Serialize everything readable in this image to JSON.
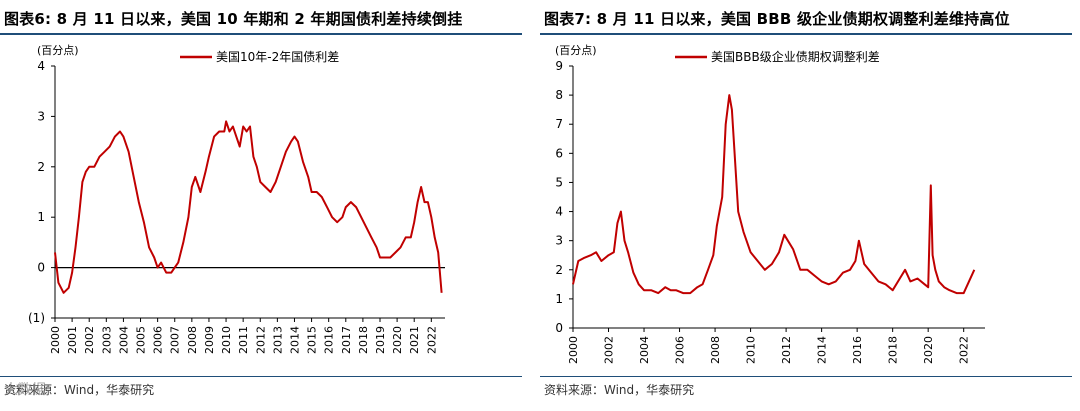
{
  "panels": [
    {
      "title": "图表6:  8 月 11 日以来，美国 10 年期和 2 年期国债利差持续倒挂",
      "source": "资料来源：Wind，华泰研究",
      "watermark": "大数据",
      "chart_data": {
        "type": "line",
        "unit_label": "(百分点)",
        "series": [
          {
            "name": "美国10年-2年国债利差",
            "color": "#c00000",
            "x": [
              2000.0,
              2000.2,
              2000.5,
              2000.8,
              2001.0,
              2001.2,
              2001.4,
              2001.6,
              2001.8,
              2002.0,
              2002.3,
              2002.6,
              2002.9,
              2003.2,
              2003.5,
              2003.8,
              2004.0,
              2004.3,
              2004.6,
              2004.9,
              2005.2,
              2005.5,
              2005.8,
              2006.0,
              2006.2,
              2006.5,
              2006.8,
              2007.0,
              2007.2,
              2007.5,
              2007.8,
              2008.0,
              2008.2,
              2008.5,
              2008.8,
              2009.0,
              2009.3,
              2009.6,
              2009.9,
              2010.0,
              2010.2,
              2010.4,
              2010.6,
              2010.8,
              2011.0,
              2011.2,
              2011.4,
              2011.6,
              2011.8,
              2012.0,
              2012.3,
              2012.6,
              2012.9,
              2013.2,
              2013.5,
              2013.8,
              2014.0,
              2014.2,
              2014.5,
              2014.8,
              2015.0,
              2015.3,
              2015.6,
              2015.9,
              2016.2,
              2016.5,
              2016.8,
              2017.0,
              2017.3,
              2017.6,
              2017.9,
              2018.2,
              2018.5,
              2018.8,
              2019.0,
              2019.3,
              2019.6,
              2019.9,
              2020.2,
              2020.5,
              2020.8,
              2021.0,
              2021.2,
              2021.4,
              2021.6,
              2021.8,
              2022.0,
              2022.2,
              2022.4,
              2022.6
            ],
            "y": [
              0.3,
              -0.3,
              -0.5,
              -0.4,
              -0.1,
              0.4,
              1.0,
              1.7,
              1.9,
              2.0,
              2.0,
              2.2,
              2.3,
              2.4,
              2.6,
              2.7,
              2.6,
              2.3,
              1.8,
              1.3,
              0.9,
              0.4,
              0.2,
              0.0,
              0.1,
              -0.1,
              -0.1,
              0.0,
              0.1,
              0.5,
              1.0,
              1.6,
              1.8,
              1.5,
              1.9,
              2.2,
              2.6,
              2.7,
              2.7,
              2.9,
              2.7,
              2.8,
              2.6,
              2.4,
              2.8,
              2.7,
              2.8,
              2.2,
              2.0,
              1.7,
              1.6,
              1.5,
              1.7,
              2.0,
              2.3,
              2.5,
              2.6,
              2.5,
              2.1,
              1.8,
              1.5,
              1.5,
              1.4,
              1.2,
              1.0,
              0.9,
              1.0,
              1.2,
              1.3,
              1.2,
              1.0,
              0.8,
              0.6,
              0.4,
              0.2,
              0.2,
              0.2,
              0.3,
              0.4,
              0.6,
              0.6,
              0.9,
              1.3,
              1.6,
              1.3,
              1.3,
              1.0,
              0.6,
              0.3,
              -0.5
            ]
          }
        ],
        "yticks": [
          "4",
          "3",
          "2",
          "1",
          "0",
          "(1)"
        ],
        "ylim": [
          -1,
          4
        ],
        "xticks": [
          "2000",
          "2001",
          "2002",
          "2003",
          "2004",
          "2005",
          "2006",
          "2007",
          "2008",
          "2009",
          "2010",
          "2011",
          "2012",
          "2013",
          "2014",
          "2015",
          "2016",
          "2017",
          "2018",
          "2019",
          "2020",
          "2021",
          "2022"
        ],
        "xlim": [
          2000,
          2022.8
        ],
        "zero_line": true,
        "legend_position": "top-center",
        "grid": false
      }
    },
    {
      "title": "图表7:  8 月 11 日以来，美国 BBB 级企业债期权调整利差维持高位",
      "source": "资料来源：Wind，华泰研究",
      "chart_data": {
        "type": "line",
        "unit_label": "(百分点)",
        "series": [
          {
            "name": "美国BBB级企业债期权调整利差",
            "color": "#c00000",
            "x": [
              2000.0,
              2000.3,
              2000.6,
              2001.0,
              2001.3,
              2001.6,
              2002.0,
              2002.3,
              2002.5,
              2002.7,
              2002.9,
              2003.1,
              2003.4,
              2003.7,
              2004.0,
              2004.4,
              2004.8,
              2005.2,
              2005.5,
              2005.8,
              2006.2,
              2006.6,
              2007.0,
              2007.3,
              2007.6,
              2007.9,
              2008.1,
              2008.4,
              2008.6,
              2008.8,
              2008.95,
              2009.1,
              2009.3,
              2009.6,
              2010.0,
              2010.4,
              2010.8,
              2011.2,
              2011.6,
              2011.9,
              2012.1,
              2012.4,
              2012.8,
              2013.2,
              2013.6,
              2014.0,
              2014.4,
              2014.8,
              2015.2,
              2015.6,
              2015.9,
              2016.1,
              2016.4,
              2016.8,
              2017.2,
              2017.6,
              2018.0,
              2018.4,
              2018.7,
              2019.0,
              2019.4,
              2019.8,
              2020.0,
              2020.15,
              2020.25,
              2020.4,
              2020.6,
              2020.9,
              2021.2,
              2021.6,
              2022.0,
              2022.3,
              2022.6
            ],
            "y": [
              1.5,
              2.3,
              2.4,
              2.5,
              2.6,
              2.3,
              2.5,
              2.6,
              3.6,
              4.0,
              3.0,
              2.6,
              1.9,
              1.5,
              1.3,
              1.3,
              1.2,
              1.4,
              1.3,
              1.3,
              1.2,
              1.2,
              1.4,
              1.5,
              2.0,
              2.5,
              3.5,
              4.5,
              7.0,
              8.0,
              7.5,
              6.0,
              4.0,
              3.3,
              2.6,
              2.3,
              2.0,
              2.2,
              2.6,
              3.2,
              3.0,
              2.7,
              2.0,
              2.0,
              1.8,
              1.6,
              1.5,
              1.6,
              1.9,
              2.0,
              2.3,
              3.0,
              2.2,
              1.9,
              1.6,
              1.5,
              1.3,
              1.7,
              2.0,
              1.6,
              1.7,
              1.5,
              1.4,
              4.9,
              2.5,
              2.0,
              1.6,
              1.4,
              1.3,
              1.2,
              1.2,
              1.6,
              2.0
            ]
          }
        ],
        "yticks": [
          "9",
          "8",
          "7",
          "6",
          "5",
          "4",
          "3",
          "2",
          "1",
          "0"
        ],
        "ylim": [
          0,
          9
        ],
        "xticks": [
          "2000",
          "2002",
          "2004",
          "2006",
          "2008",
          "2010",
          "2012",
          "2014",
          "2016",
          "2018",
          "2020",
          "2022"
        ],
        "xlim": [
          2000,
          2023.2
        ],
        "zero_line": false,
        "legend_position": "top-center",
        "grid": false
      }
    }
  ]
}
